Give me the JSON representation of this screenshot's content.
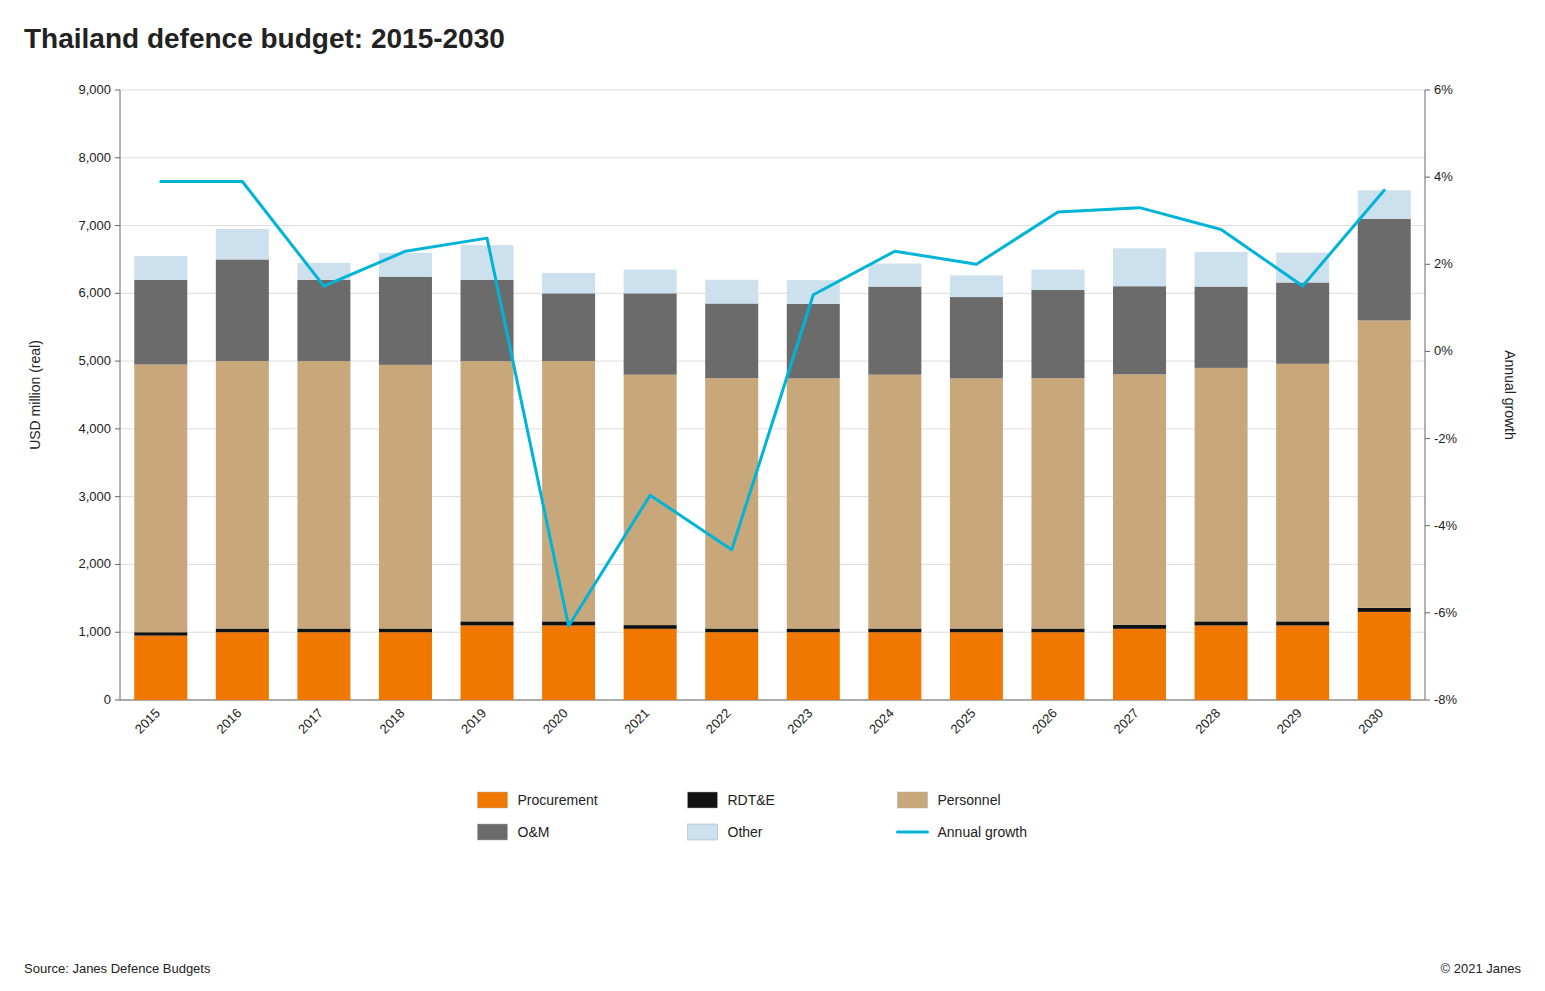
{
  "chart_data": {
    "type": "bar",
    "title": "Thailand defence budget: 2015-2030",
    "y_label": "USD million (real)",
    "y2_label": "Annual growth",
    "annotations": [
      "Source: Janes Defence Budgets",
      "© 2021 Janes"
    ],
    "categories": [
      "2015",
      "2016",
      "2017",
      "2018",
      "2019",
      "2020",
      "2021",
      "2022",
      "2023",
      "2024",
      "2025",
      "2026",
      "2027",
      "2028",
      "2029",
      "2030"
    ],
    "stacked": true,
    "grid": true,
    "legend": "bottom",
    "series": [
      {
        "name": "Procurement",
        "color": "#f07800",
        "values": [
          950,
          1000,
          1000,
          1000,
          1100,
          1100,
          1050,
          1000,
          1000,
          1000,
          1000,
          1000,
          1050,
          1100,
          1100,
          1300
        ]
      },
      {
        "name": "RDT&E",
        "color": "#111111",
        "values": [
          50,
          55,
          55,
          55,
          60,
          60,
          55,
          55,
          55,
          55,
          55,
          55,
          60,
          60,
          60,
          60
        ]
      },
      {
        "name": "Personnel",
        "color": "#c8a87a",
        "values": [
          3950,
          3945,
          3945,
          3890,
          3840,
          3840,
          3695,
          3695,
          3690,
          3745,
          3690,
          3695,
          3695,
          3740,
          3800,
          4240
        ]
      },
      {
        "name": "O&M",
        "color": "#6b6b6b",
        "values": [
          1250,
          1500,
          1200,
          1300,
          1200,
          1000,
          1200,
          1100,
          1100,
          1300,
          1200,
          1300,
          1300,
          1200,
          1200,
          1500
        ]
      },
      {
        "name": "Other",
        "color": "#cde0ee",
        "values": [
          350,
          450,
          250,
          350,
          510,
          300,
          350,
          350,
          350,
          340,
          320,
          300,
          560,
          510,
          440,
          420
        ]
      },
      {
        "name": "Annual growth",
        "type": "line",
        "axis": "y2",
        "color": "#00b4d8",
        "values": [
          3.9,
          3.9,
          1.5,
          2.3,
          2.6,
          -6.3,
          -3.3,
          -4.55,
          1.3,
          2.3,
          2.0,
          3.2,
          3.3,
          2.8,
          1.5,
          3.7
        ]
      }
    ],
    "ylim": [
      0,
      9000
    ],
    "yticks": [
      0,
      {
        "value": 1000,
        "label": "1,000"
      },
      {
        "value": 2000,
        "label": "2,000"
      },
      {
        "value": 3000,
        "label": "3,000"
      },
      {
        "value": 4000,
        "label": "4,000"
      },
      {
        "value": 5000,
        "label": "5,000"
      },
      {
        "value": 6000,
        "label": "6,000"
      },
      {
        "value": 7000,
        "label": "7,000"
      },
      {
        "value": 8000,
        "label": "8,000"
      },
      {
        "value": 9000,
        "label": "9,000"
      }
    ],
    "y2lim": [
      -8,
      6
    ],
    "y2ticks": [
      {
        "value": -8,
        "label": "-8%"
      },
      {
        "value": -6,
        "label": "-6%"
      },
      {
        "value": -4,
        "label": "-4%"
      },
      {
        "value": -2,
        "label": "-2%"
      },
      {
        "value": 0,
        "label": "0%"
      },
      {
        "value": 2,
        "label": "2%"
      },
      {
        "value": 4,
        "label": "4%"
      },
      {
        "value": 6,
        "label": "6%"
      }
    ]
  }
}
